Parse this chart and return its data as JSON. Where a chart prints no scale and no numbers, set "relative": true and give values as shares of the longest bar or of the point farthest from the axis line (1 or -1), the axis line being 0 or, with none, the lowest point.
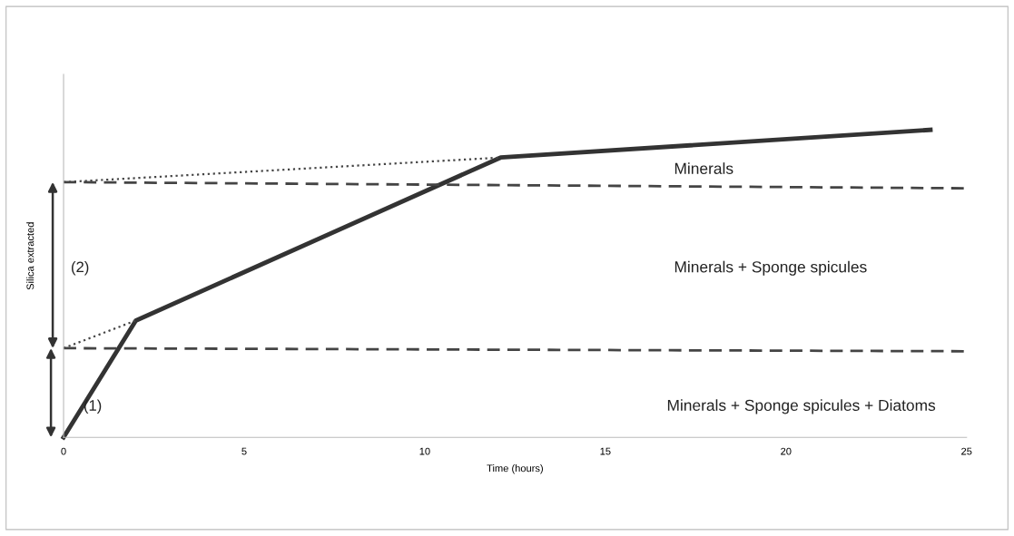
{
  "chart_data": {
    "type": "line",
    "relative": true,
    "xlabel": "Time (hours)",
    "ylabel": "Silica extracted",
    "xlim": [
      0,
      25
    ],
    "xticks": [
      0,
      5,
      10,
      15,
      20,
      25
    ],
    "grid": false,
    "legend": false,
    "marker": "none",
    "series": [
      {
        "line_style": "solid",
        "color": "#333333",
        "x": [
          0,
          2,
          12.1,
          24
        ],
        "values": [
          0,
          0.38,
          0.91,
          1
        ]
      },
      {
        "line_style": "dotted",
        "color": "#444444",
        "x": [
          0,
          2
        ],
        "values": [
          0.29,
          0.38
        ]
      },
      {
        "line_style": "dotted",
        "color": "#444444",
        "x": [
          0,
          12.1
        ],
        "values": [
          0.83,
          0.91
        ]
      },
      {
        "line_style": "dashed",
        "color": "#444444",
        "x": [
          0,
          25
        ],
        "values": [
          0.29,
          0.28
        ]
      },
      {
        "line_style": "dashed",
        "color": "#444444",
        "x": [
          0,
          25
        ],
        "values": [
          0.83,
          0.81
        ]
      }
    ],
    "annotations": [
      "Minerals",
      "Minerals + Sponge spicules",
      "Minerals + Sponge spicules + Diatoms",
      "(1)",
      "(2)"
    ]
  }
}
